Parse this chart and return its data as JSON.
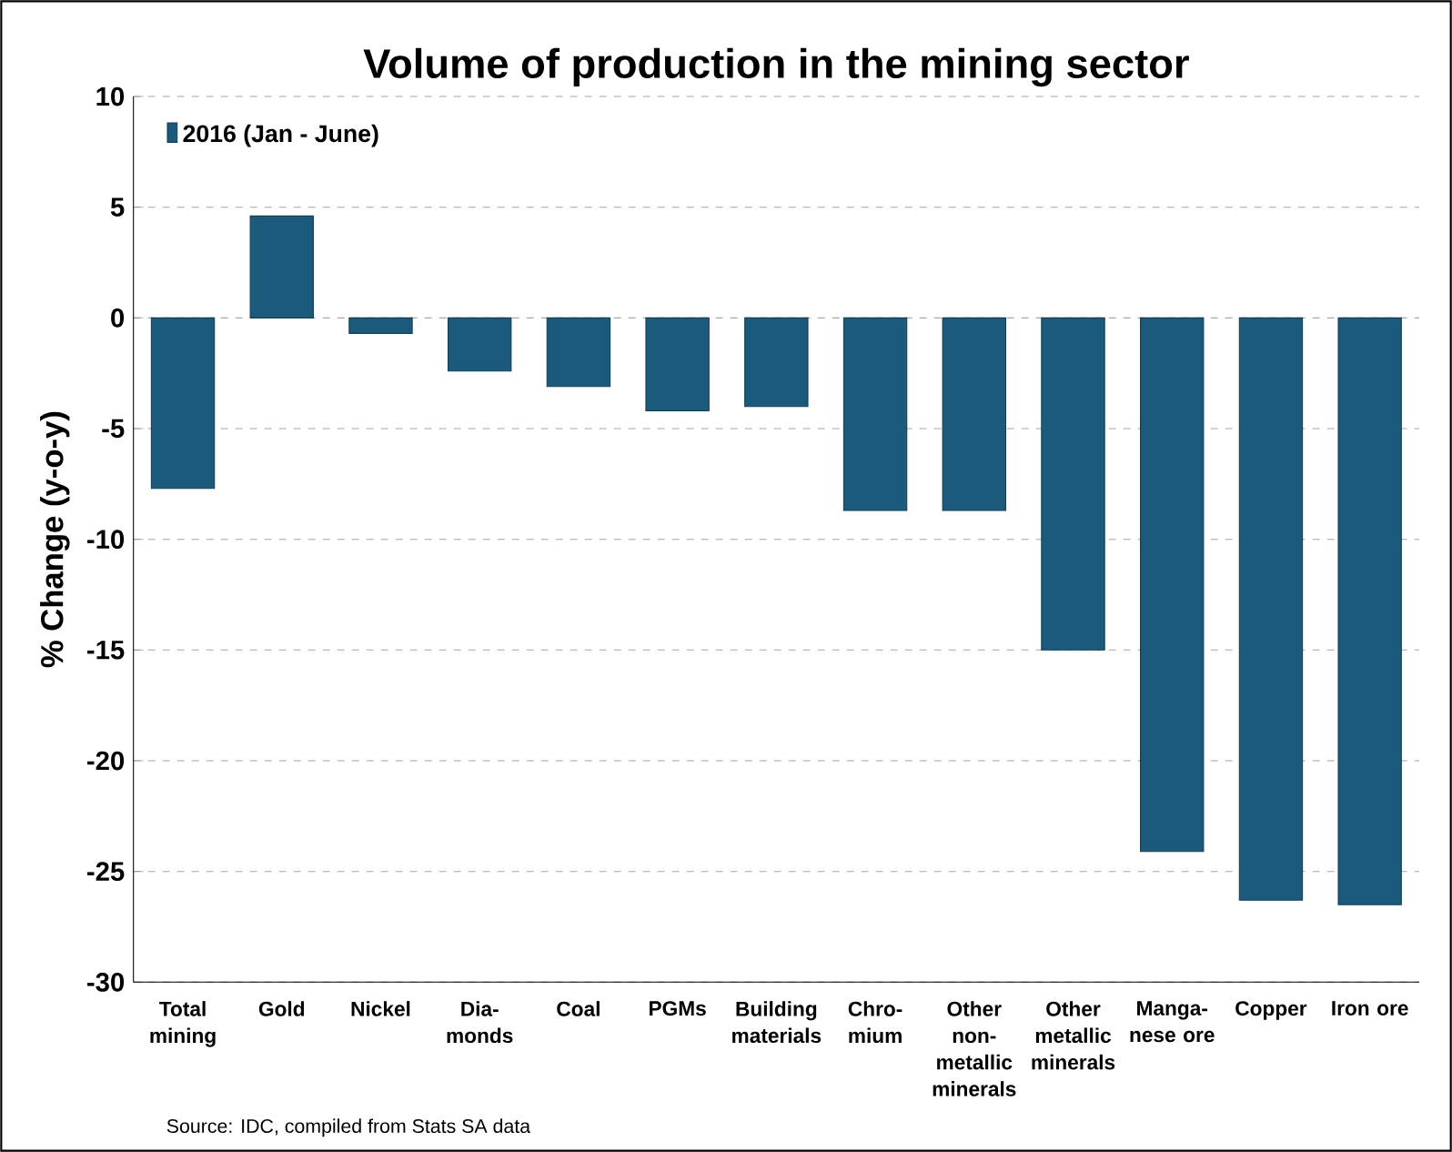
{
  "chart_data": {
    "type": "bar",
    "title": "Volume of production in the mining sector",
    "ylabel": "% Change (y-o-y)",
    "categories": [
      "Total mining",
      "Gold",
      "Nickel",
      "Dia- monds",
      "Coal",
      "PGMs",
      "Building materials",
      "Chro- mium",
      "Other non- metallic minerals",
      "Other metallic minerals",
      "Manga- nese ore",
      "Copper",
      "Iron ore"
    ],
    "series": [
      {
        "name": "2016 (Jan - June)",
        "color": "#1b5a7a",
        "values": [
          -7.7,
          4.6,
          -0.7,
          -2.4,
          -3.1,
          -4.2,
          -4.0,
          -8.7,
          -8.7,
          -15.0,
          -24.1,
          -26.3,
          -26.5
        ]
      }
    ],
    "ylim": [
      -30,
      10
    ],
    "yticks": [
      -30,
      -25,
      -20,
      -15,
      -10,
      -5,
      0,
      5,
      10
    ],
    "grid": "y",
    "legend": "top left",
    "annotations": [
      "Source: IDC, compiled from Stats SA data"
    ]
  }
}
